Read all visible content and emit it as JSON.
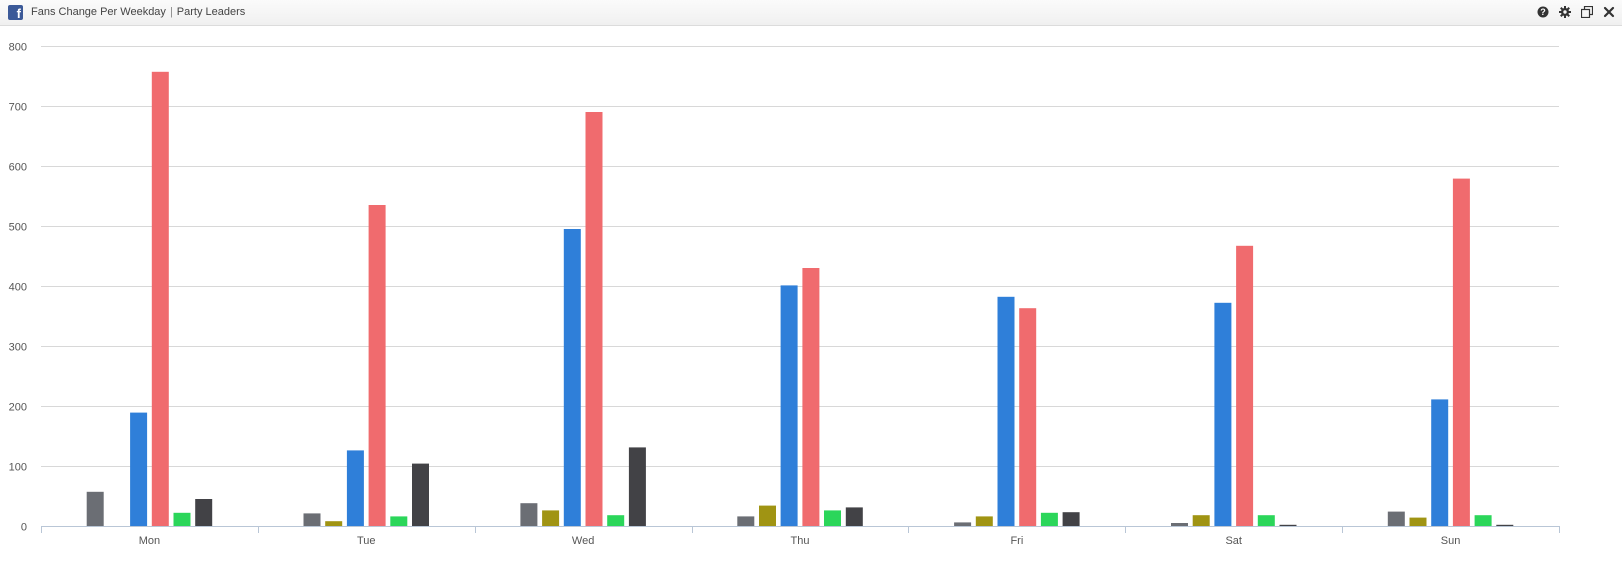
{
  "window": {
    "title": "Fans Change Per Weekday",
    "subtitle": "Party Leaders",
    "separator": "|",
    "icons": [
      "help-icon",
      "gear-icon",
      "restore-icon",
      "close-icon"
    ]
  },
  "chart_data": {
    "type": "bar",
    "title": "Fans Change Per Weekday",
    "subtitle": "Party Leaders",
    "xlabel": "",
    "ylabel": "",
    "categories": [
      "Mon",
      "Tue",
      "Wed",
      "Thu",
      "Fri",
      "Sat",
      "Sun"
    ],
    "ylim": [
      0,
      800
    ],
    "yticks": [
      0,
      100,
      200,
      300,
      400,
      500,
      600,
      700,
      800
    ],
    "grid": true,
    "legend": "none",
    "series": [
      {
        "color": "#6b6e74",
        "values": [
          57,
          21,
          38,
          16,
          6,
          5,
          24
        ]
      },
      {
        "color": "#a09413",
        "values": [
          0,
          8,
          26,
          34,
          16,
          18,
          14
        ]
      },
      {
        "color": "#2f7fd9",
        "values": [
          189,
          126,
          495,
          401,
          382,
          372,
          211
        ]
      },
      {
        "color": "#f06b6e",
        "values": [
          757,
          535,
          690,
          430,
          363,
          467,
          579
        ]
      },
      {
        "color": "#2bd65a",
        "values": [
          22,
          16,
          18,
          26,
          22,
          18,
          18
        ]
      },
      {
        "color": "#424246",
        "values": [
          45,
          104,
          131,
          31,
          23,
          2,
          2
        ]
      }
    ]
  }
}
